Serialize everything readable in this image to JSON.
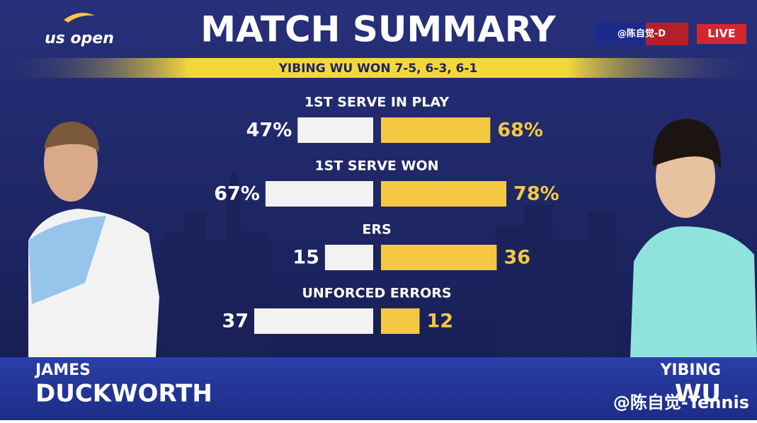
{
  "header": {
    "logo": "us open",
    "title": "MATCH SUMMARY",
    "result": "YIBING WU WON 7-5, 6-3, 6-1",
    "live": "LIVE",
    "watermark_top": "@陈自觉-D",
    "watermark_bottom": "@陈自觉-Tennis"
  },
  "players": {
    "left_first": "JAMES",
    "right_first": "YIBING"
  },
  "chart_data": {
    "type": "butterfly",
    "categories": [
      "1ST SERVE IN PLAY",
      "1ST SERVE WON",
      "ERS",
      "UNFORCED ERRORS"
    ],
    "xlims": [
      [
        0,
        100
      ],
      [
        0,
        100
      ],
      [
        0,
        50
      ],
      [
        0,
        50
      ]
    ],
    "series": [
      {
        "name": "DUCKWORTH",
        "color": "#f2f2f2",
        "values": [
          47,
          67,
          15,
          37
        ],
        "value_labels": [
          "47%",
          "67%",
          "15",
          "37"
        ]
      },
      {
        "name": "WU",
        "color": "#f5c842",
        "values": [
          68,
          78,
          36,
          12
        ],
        "value_labels": [
          "68%",
          "78%",
          "36",
          "12"
        ]
      }
    ]
  }
}
